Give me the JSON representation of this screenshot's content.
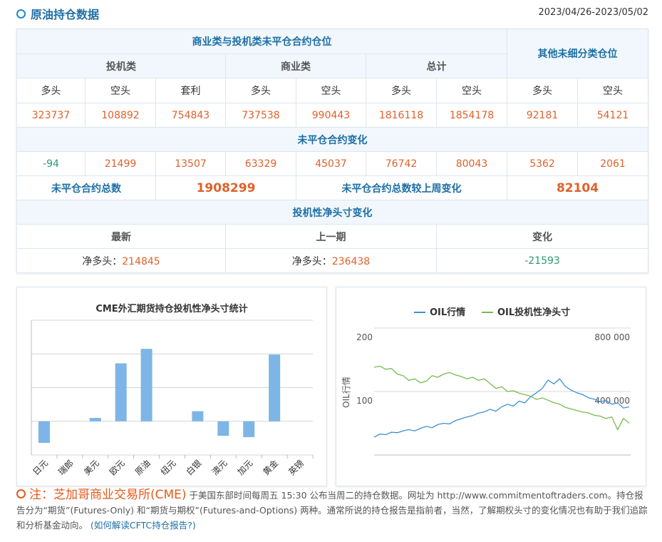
{
  "header": {
    "title": "原油持仓数据",
    "date_range": "2023/04/26-2023/05/02"
  },
  "table": {
    "group_header": "商业类与投机类未平仓合约仓位",
    "other_header": "其他未细分类仓位",
    "groups": [
      "投机类",
      "商业类",
      "总计"
    ],
    "columns": [
      "多头",
      "空头",
      "套利",
      "多头",
      "空头",
      "多头",
      "空头",
      "多头",
      "空头"
    ],
    "positions": [
      323737,
      108892,
      754843,
      737538,
      990443,
      1816118,
      1854178,
      92181,
      54121
    ],
    "change_title": "未平仓合约变化",
    "changes": [
      -94,
      21499,
      13507,
      63329,
      45037,
      76742,
      80043,
      5362,
      2061
    ],
    "total_label": "未平仓合约总数",
    "total": 1908299,
    "total_change_label": "未平仓合约总数较上周变化",
    "total_change": 82104,
    "net_title": "投机性净头寸变化",
    "net_headers": [
      "最新",
      "上一期",
      "变化"
    ],
    "net_prefix": "净多头：",
    "net_latest": 214845,
    "net_previous": 236438,
    "net_change": -21593
  },
  "chart_data": [
    {
      "type": "bar",
      "title": "CME外汇期货持仓投机性净头寸统计",
      "categories": [
        "日元",
        "瑞郎",
        "美元",
        "欧元",
        "原油",
        "纽元",
        "白银",
        "澳元",
        "加元",
        "黄金",
        "英镑"
      ],
      "values": [
        -0.64,
        0,
        0.1,
        1.72,
        2.15,
        0,
        0.3,
        -0.43,
        -0.47,
        1.98,
        0
      ],
      "color": "#7db5e6",
      "ylim": [
        -1,
        3
      ],
      "yticks": [
        -1,
        0,
        1,
        2,
        3
      ],
      "grid": true
    },
    {
      "type": "line",
      "ylabel": "OIL行情",
      "series": [
        {
          "name": "OIL行情",
          "color": "#3d8fd6",
          "values": [
            28,
            33,
            32,
            36,
            35,
            38,
            40,
            38,
            42,
            45,
            43,
            48,
            50,
            49,
            54,
            57,
            60,
            62,
            66,
            68,
            72,
            69,
            76,
            80,
            77,
            85,
            82,
            92,
            98,
            105,
            118,
            112,
            120,
            108,
            102,
            98,
            95,
            90,
            88,
            84,
            86,
            80,
            82,
            74,
            76
          ]
        },
        {
          "name": "OIL投机性净头寸",
          "color": "#78bb4c",
          "axis": "y2",
          "values": [
            553000,
            560000,
            540000,
            545000,
            510000,
            500000,
            470000,
            480000,
            455000,
            465000,
            500000,
            490000,
            510000,
            520000,
            505000,
            495000,
            480000,
            490000,
            470000,
            480000,
            450000,
            420000,
            430000,
            400000,
            405000,
            390000,
            380000,
            370000,
            350000,
            360000,
            345000,
            330000,
            320000,
            300000,
            290000,
            280000,
            270000,
            265000,
            250000,
            245000,
            230000,
            240000,
            160000,
            230000,
            200000
          ]
        }
      ],
      "ylim": [
        0,
        200
      ],
      "yticks": [
        100,
        200
      ],
      "y2lim": [
        0,
        800000
      ],
      "y2ticks": [
        {
          "value": 400000,
          "label": "400 000"
        },
        {
          "value": 800000,
          "label": "800 000"
        }
      ],
      "grid": true,
      "legend": "top"
    }
  ],
  "note": {
    "label": "注：",
    "source": "芝加哥商业交易所(CME)",
    "text": "于美国东部时间每周五 15:30 公布当周二的持仓数据。网址为 http://www.commitmentoftraders.com。持仓报告分为“期货”(Futures-Only) 和“期货与期权”(Futures-and-Options) 两种。通常所说的持仓报告是指前者，当然，了解期权头寸的变化情况也有助于我们追踪和分析基金动向。",
    "link": "(如何解读CFTC持仓报告?)"
  }
}
